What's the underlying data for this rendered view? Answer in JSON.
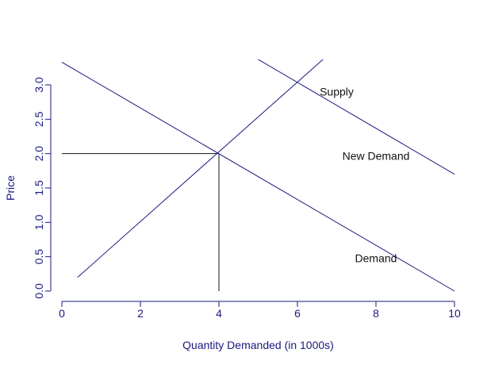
{
  "chart_data": {
    "type": "line",
    "title": "",
    "xlabel": "Quantity Demanded (in 1000s)",
    "ylabel": "Price",
    "xlim": [
      0,
      10
    ],
    "ylim": [
      0,
      3
    ],
    "x_ticks": [
      0,
      2,
      4,
      6,
      8,
      10
    ],
    "x_tick_labels": [
      "0",
      "2",
      "4",
      "6",
      "8",
      "10"
    ],
    "y_ticks": [
      0,
      0.5,
      1,
      1.5,
      2,
      2.5,
      3
    ],
    "y_tick_labels": [
      "0.0",
      "0.5",
      "1.0",
      "1.5",
      "2.0",
      "2.5",
      "3.0"
    ],
    "grid": false,
    "series": [
      {
        "name": "Demand",
        "x": [
          0,
          10
        ],
        "y": [
          3.33,
          0
        ]
      },
      {
        "name": "Supply",
        "x": [
          0.4,
          6.65
        ],
        "y": [
          0.2,
          3.37
        ]
      },
      {
        "name": "New Demand",
        "x": [
          5.0,
          10.0
        ],
        "y": [
          3.37,
          1.7
        ]
      }
    ],
    "reference_lines": [
      {
        "x": [
          0,
          4
        ],
        "y": [
          2,
          2
        ]
      },
      {
        "x": [
          4,
          4
        ],
        "y": [
          0,
          2
        ]
      }
    ],
    "annotations": [
      {
        "text": "Supply",
        "x": 7.0,
        "y": 2.9
      },
      {
        "text": "New Demand",
        "x": 8.0,
        "y": 1.97
      },
      {
        "text": "Demand",
        "x": 8.0,
        "y": 0.48
      }
    ],
    "colors": {
      "axis": "#1a1a80",
      "lines": "#1a1a80",
      "text": "#111111"
    }
  }
}
